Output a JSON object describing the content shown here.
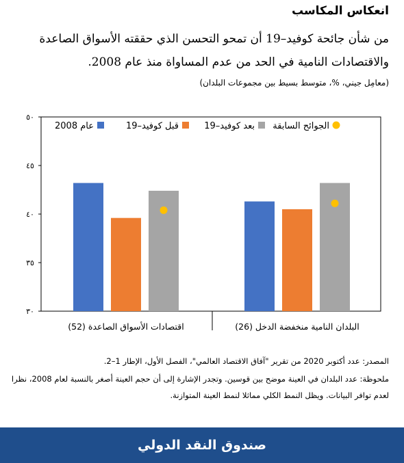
{
  "header": {
    "title": "انعكاس المكاسب",
    "subtitle": "من شأن جائحة كوفيد–19 أن تمحو التحسن الذي حققته الأسواق الصاعدة والاقتصادات النامية في الحد من عدم المساواة منذ عام 2008.",
    "unit_note": "(معامِل جيني، %، متوسط بسيط بين مجموعات البلدان)"
  },
  "chart_data": {
    "type": "bar",
    "categories": [
      "اقتصادات الأسواق الصاعدة (52)",
      "البلدان النامية منخفضة الدخل (26)"
    ],
    "series": [
      {
        "name": "عام 2008",
        "values": [
          43.2,
          41.3
        ],
        "color": "#4472c4"
      },
      {
        "name": "قبل كوفيد–19",
        "values": [
          39.6,
          40.5
        ],
        "color": "#ed7d31"
      },
      {
        "name": "بعد كوفيد–19",
        "values": [
          42.4,
          43.2
        ],
        "color": "#a5a5a5"
      }
    ],
    "markers": {
      "name": "الجوائح السابقة",
      "values": [
        40.4,
        41.1
      ],
      "color": "#ffc000",
      "overlay_on_series": 2
    },
    "ylim": [
      30,
      50
    ],
    "yticks": [
      "٣٠",
      "٣٥",
      "٤٠",
      "٤٥",
      "٥٠"
    ],
    "ytick_values": [
      30,
      35,
      40,
      45,
      50
    ],
    "legend_position": "top",
    "grid": false
  },
  "source_text": "المصدر: عدد أكتوبر 2020 من تقرير \"آفاق الاقتصاد العالمي\"، الفصل الأول، الإطار 1–2.",
  "note_text": "ملحوظة: عدد البلدان في العينة موضح بين قوسين. وتجدر الإشارة إلى أن حجم العينة أصغر بالنسبة لعام 2008، نظرا لعدم توافر البيانات. ويظل النمط الكلي مماثلا لنمط العينة المتوازنة.",
  "footer": {
    "label": "صندوق النقد الدولي"
  }
}
